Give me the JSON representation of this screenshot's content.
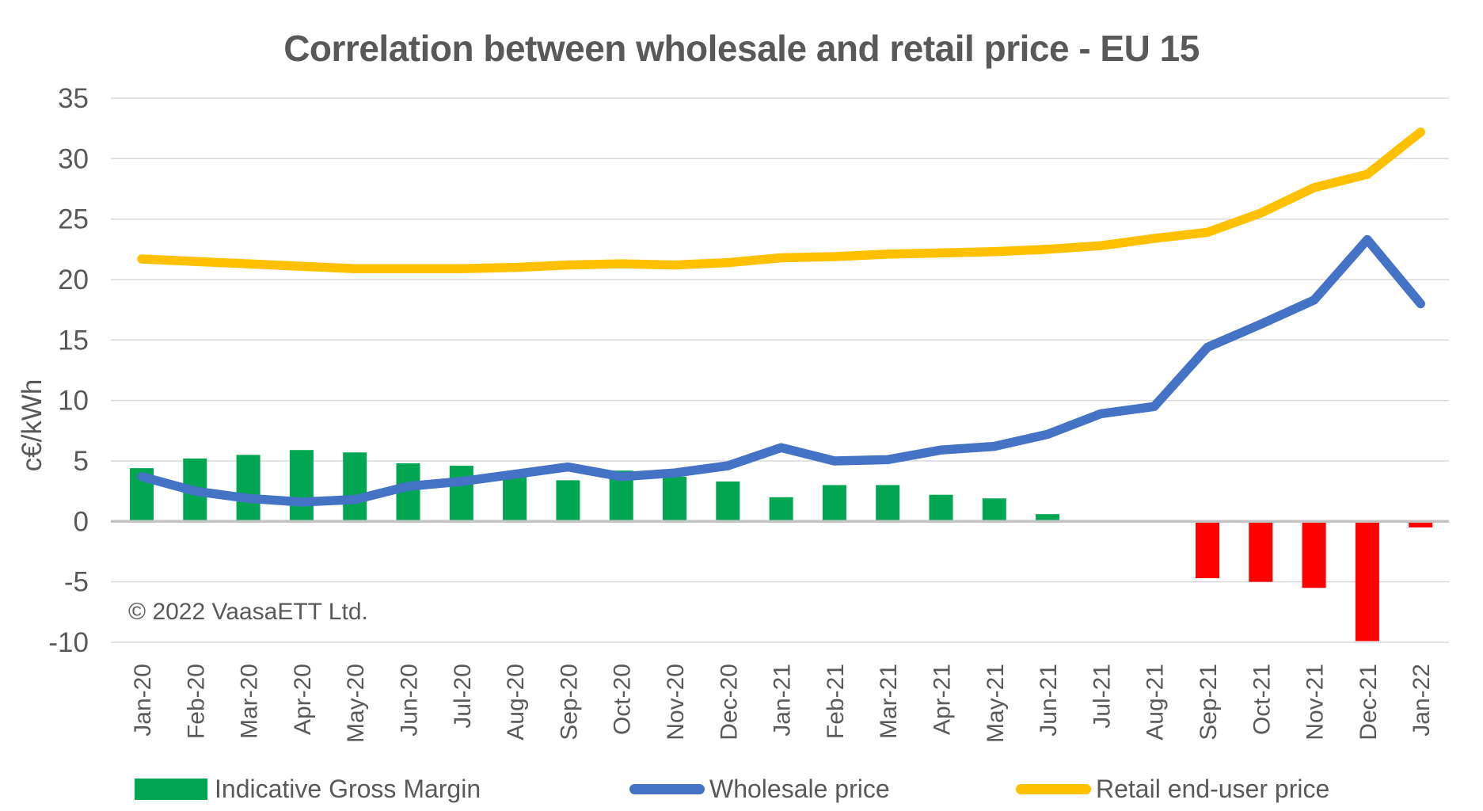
{
  "chart_data": {
    "type": "combo",
    "title": "Correlation between wholesale and retail price - EU 15",
    "ylabel": "c€/kWh",
    "copyright": "© 2022 VaasaETT Ltd.",
    "categories": [
      "Jan-20",
      "Feb-20",
      "Mar-20",
      "Apr-20",
      "May-20",
      "Jun-20",
      "Jul-20",
      "Aug-20",
      "Sep-20",
      "Oct-20",
      "Nov-20",
      "Dec-20",
      "Jan-21",
      "Feb-21",
      "Mar-21",
      "Apr-21",
      "May-21",
      "Jun-21",
      "Jul-21",
      "Aug-21",
      "Sep-21",
      "Oct-21",
      "Nov-21",
      "Dec-21",
      "Jan-22"
    ],
    "series": [
      {
        "name": "Indicative Gross Margin",
        "type": "bar",
        "color": "#00A651",
        "negative_color": "#FF0000",
        "values": [
          4.4,
          5.2,
          5.5,
          5.9,
          5.7,
          4.8,
          4.6,
          3.9,
          3.4,
          4.2,
          3.7,
          3.3,
          2.0,
          3.0,
          3.0,
          2.2,
          1.9,
          0.6,
          0,
          0,
          -4.7,
          -5.0,
          -5.5,
          -9.9,
          -0.5
        ]
      },
      {
        "name": "Wholesale price",
        "type": "line",
        "color": "#4472C4",
        "values": [
          3.7,
          2.5,
          1.9,
          1.6,
          1.8,
          2.9,
          3.3,
          3.9,
          4.5,
          3.7,
          4.0,
          4.6,
          6.1,
          5.0,
          5.1,
          5.9,
          6.2,
          7.2,
          8.9,
          9.5,
          14.4,
          16.3,
          18.3,
          23.3,
          18.0
        ]
      },
      {
        "name": "Retail end-user price",
        "type": "line",
        "color": "#FFC000",
        "values": [
          21.7,
          21.5,
          21.3,
          21.1,
          20.9,
          20.9,
          20.9,
          21.0,
          21.2,
          21.3,
          21.2,
          21.4,
          21.8,
          21.9,
          22.1,
          22.2,
          22.3,
          22.5,
          22.8,
          23.4,
          23.9,
          25.5,
          27.6,
          28.7,
          32.2
        ]
      }
    ],
    "ylim": [
      -10,
      35
    ],
    "ytick_step": 5,
    "grid": true,
    "legend_position": "bottom",
    "text_color": "#595959",
    "gridline_color": "#D9D9D9",
    "zero_line_color": "#C3C3C3",
    "background": "#FFFFFF"
  }
}
